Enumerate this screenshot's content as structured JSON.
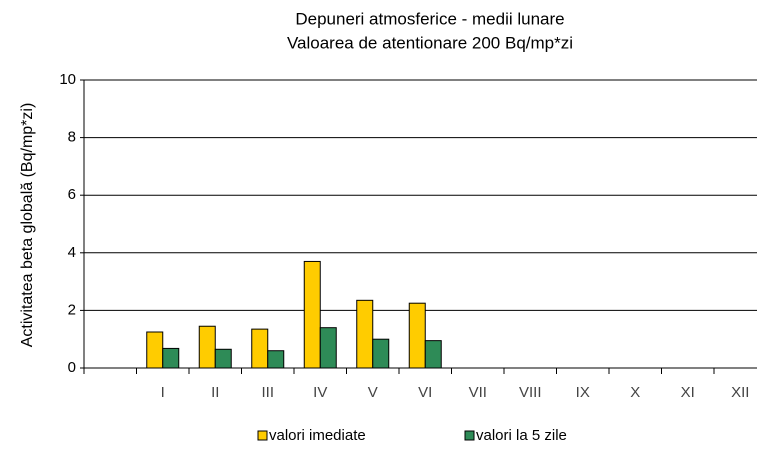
{
  "chart_data": {
    "type": "bar",
    "title": "Depuneri atmosferice - medii lunare",
    "subtitle": "Valoarea de atentionare 200 Bq/mp*zi",
    "y_label": "Activitatea beta globală (Bq/mp*zi)",
    "categories": [
      null,
      "I",
      "II",
      "III",
      "IV",
      "V",
      "VI",
      "VII",
      "VIII",
      "IX",
      "X",
      "XI",
      "XII"
    ],
    "series": [
      {
        "name": "valori imediate",
        "color": "#ffcc00",
        "values": [
          null,
          1.25,
          1.45,
          1.35,
          3.7,
          2.35,
          2.25,
          null,
          null,
          null,
          null,
          null,
          null
        ]
      },
      {
        "name": "valori la 5 zile",
        "color": "#2e8b57",
        "values": [
          null,
          0.68,
          0.65,
          0.6,
          1.4,
          1.0,
          0.95,
          null,
          null,
          null,
          null,
          null,
          null
        ]
      }
    ],
    "ylim": [
      0,
      10
    ],
    "yticks": [
      0,
      2,
      4,
      6,
      8,
      10
    ],
    "grid": true,
    "legend": "bottom"
  }
}
